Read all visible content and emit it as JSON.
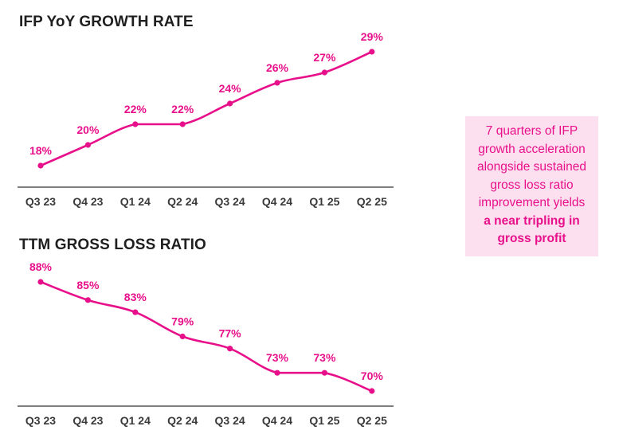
{
  "accent_color": "#e8108a",
  "axis_color": "#555555",
  "chart_data": [
    {
      "type": "line",
      "title": "IFP YoY GROWTH RATE",
      "categories": [
        "Q3 23",
        "Q4 23",
        "Q1 24",
        "Q2 24",
        "Q3 24",
        "Q4 24",
        "Q1 25",
        "Q2 25"
      ],
      "values": [
        18,
        20,
        22,
        22,
        24,
        26,
        27,
        29
      ],
      "labels": [
        "18%",
        "20%",
        "22%",
        "22%",
        "24%",
        "26%",
        "27%",
        "29%"
      ],
      "unit": "%",
      "xlabel": "",
      "ylabel": ""
    },
    {
      "type": "line",
      "title": "TTM GROSS LOSS RATIO",
      "categories": [
        "Q3 23",
        "Q4 23",
        "Q1 24",
        "Q2 24",
        "Q3 24",
        "Q4 24",
        "Q1 25",
        "Q2 25"
      ],
      "values": [
        88,
        85,
        83,
        79,
        77,
        73,
        73,
        70
      ],
      "labels": [
        "88%",
        "85%",
        "83%",
        "79%",
        "77%",
        "73%",
        "73%",
        "70%"
      ],
      "unit": "%",
      "xlabel": "",
      "ylabel": ""
    }
  ],
  "callout": {
    "line1": "7 quarters of IFP",
    "line2": "growth acceleration",
    "line3": "alongside sustained",
    "line4": "gross loss ratio",
    "line5": "improvement yields",
    "bold1": "a near tripling in",
    "bold2": "gross profit"
  }
}
